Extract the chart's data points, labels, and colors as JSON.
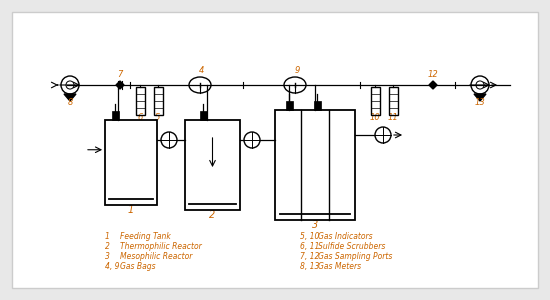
{
  "background": "#e8e8e8",
  "panel_bg": "#ffffff",
  "line_color": "#000000",
  "number_color": "#cc6600",
  "legend_color": "#cc6600",
  "legend_items_left": [
    [
      "1",
      "Feeding Tank"
    ],
    [
      "2",
      "Thermophilic Reactor"
    ],
    [
      "3",
      "Mesophilic Reactor"
    ],
    [
      "4, 9",
      "Gas Bags"
    ]
  ],
  "legend_items_right": [
    [
      "5, 10",
      "Gas Indicators"
    ],
    [
      "6, 11",
      "Sulfide Scrubbers"
    ],
    [
      "7, 12",
      "Gas Sampling Ports"
    ],
    [
      "8, 13",
      "Gas Meters"
    ]
  ]
}
